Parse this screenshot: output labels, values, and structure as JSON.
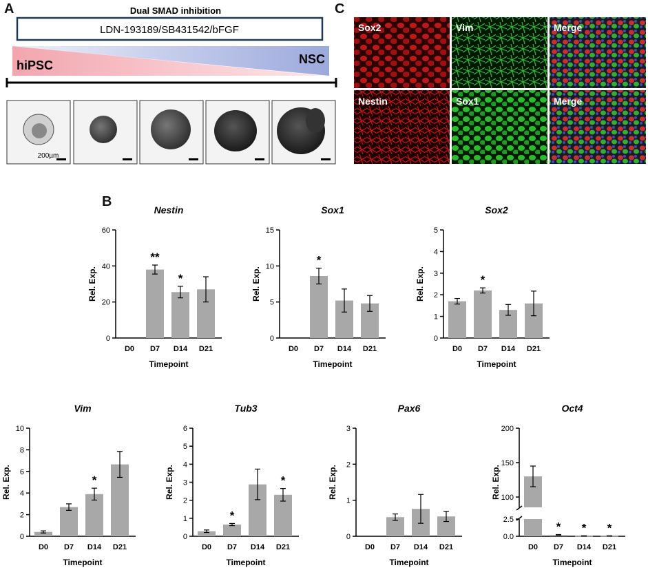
{
  "panels": {
    "a": "A",
    "b": "B",
    "c": "C"
  },
  "panel_a": {
    "protocol_title": "Dual SMAD inhibition",
    "media_box": "LDN-193189/SB431542/bFGF",
    "start_label": "hiPSC",
    "end_label": "NSC",
    "scale_bar_label": "200µm",
    "colors": {
      "start": "#e8a0a8",
      "end": "#a8b4e0",
      "box_border": "#1e3a5a"
    }
  },
  "panel_c": {
    "row1": [
      "Sox2",
      "Vim",
      "Merge"
    ],
    "row2": [
      "Nestin",
      "Sox1",
      "Merge"
    ],
    "colors": {
      "red": "#c01010",
      "green": "#20b020"
    }
  },
  "chart_data": [
    {
      "type": "bar",
      "title": "Nestin",
      "xlabel": "Timepoint",
      "ylabel": "Rel. Exp.",
      "categories": [
        "D0",
        "D7",
        "D14",
        "D21"
      ],
      "values": [
        0,
        38,
        25.5,
        27
      ],
      "errors": [
        0,
        2.5,
        3.2,
        7
      ],
      "significance": [
        "",
        "**",
        "*",
        ""
      ],
      "ylim": [
        0,
        60
      ],
      "yticks": [
        0,
        20,
        40,
        60
      ]
    },
    {
      "type": "bar",
      "title": "Sox1",
      "xlabel": "Timepoint",
      "ylabel": "Rel. Exp.",
      "categories": [
        "D0",
        "D7",
        "D14",
        "D21"
      ],
      "values": [
        0,
        8.6,
        5.2,
        4.8
      ],
      "errors": [
        0,
        1.1,
        1.6,
        1.1
      ],
      "significance": [
        "",
        "*",
        "",
        ""
      ],
      "ylim": [
        0,
        15
      ],
      "yticks": [
        0,
        5,
        10,
        15
      ]
    },
    {
      "type": "bar",
      "title": "Sox2",
      "xlabel": "Timepoint",
      "ylabel": "Rel. Exp.",
      "categories": [
        "D0",
        "D7",
        "D14",
        "D21"
      ],
      "values": [
        1.7,
        2.2,
        1.3,
        1.6
      ],
      "errors": [
        0.13,
        0.12,
        0.25,
        0.57
      ],
      "significance": [
        "",
        "*",
        "",
        ""
      ],
      "ylim": [
        0,
        5
      ],
      "yticks": [
        0,
        1,
        2,
        3,
        4,
        5
      ]
    },
    {
      "type": "bar",
      "title": "Vim",
      "xlabel": "Timepoint",
      "ylabel": "Rel. Exp.",
      "categories": [
        "D0",
        "D7",
        "D14",
        "D21"
      ],
      "values": [
        0.4,
        2.7,
        3.9,
        6.65
      ],
      "errors": [
        0.1,
        0.3,
        0.55,
        1.2
      ],
      "significance": [
        "",
        "",
        "*",
        ""
      ],
      "ylim": [
        0,
        10
      ],
      "yticks": [
        0,
        2,
        4,
        6,
        8,
        10
      ]
    },
    {
      "type": "bar",
      "title": "Tub3",
      "xlabel": "Timepoint",
      "ylabel": "Rel. Exp.",
      "categories": [
        "D0",
        "D7",
        "D14",
        "D21"
      ],
      "values": [
        0.28,
        0.65,
        2.88,
        2.3
      ],
      "errors": [
        0.07,
        0.06,
        0.85,
        0.35
      ],
      "significance": [
        "",
        "*",
        "",
        "*"
      ],
      "ylim": [
        0,
        6
      ],
      "yticks": [
        0,
        1,
        2,
        3,
        4,
        5,
        6
      ]
    },
    {
      "type": "bar",
      "title": "Pax6",
      "xlabel": "Timepoint",
      "ylabel": "Rel. Exp.",
      "categories": [
        "D0",
        "D7",
        "D14",
        "D21"
      ],
      "values": [
        0,
        0.53,
        0.76,
        0.55
      ],
      "errors": [
        0,
        0.09,
        0.4,
        0.14
      ],
      "significance": [
        "",
        "",
        "",
        ""
      ],
      "ylim": [
        0,
        3
      ],
      "yticks": [
        0,
        1,
        2,
        3
      ]
    },
    {
      "type": "bar",
      "title": "Oct4",
      "xlabel": "Timepoint",
      "ylabel": "Rel. Exp.",
      "categories": [
        "D0",
        "D7",
        "D14",
        "D21"
      ],
      "values": [
        130,
        0.2,
        0.05,
        0.05
      ],
      "errors": [
        15,
        0.05,
        0.02,
        0.02
      ],
      "significance": [
        "",
        "*",
        "*",
        "*"
      ],
      "broken_axis": true,
      "lower_ylim": [
        0,
        2.5
      ],
      "lower_yticks": [
        "0.0",
        "2.5"
      ],
      "upper_ylim": [
        85,
        200
      ],
      "upper_yticks": [
        100,
        150,
        200
      ]
    }
  ]
}
